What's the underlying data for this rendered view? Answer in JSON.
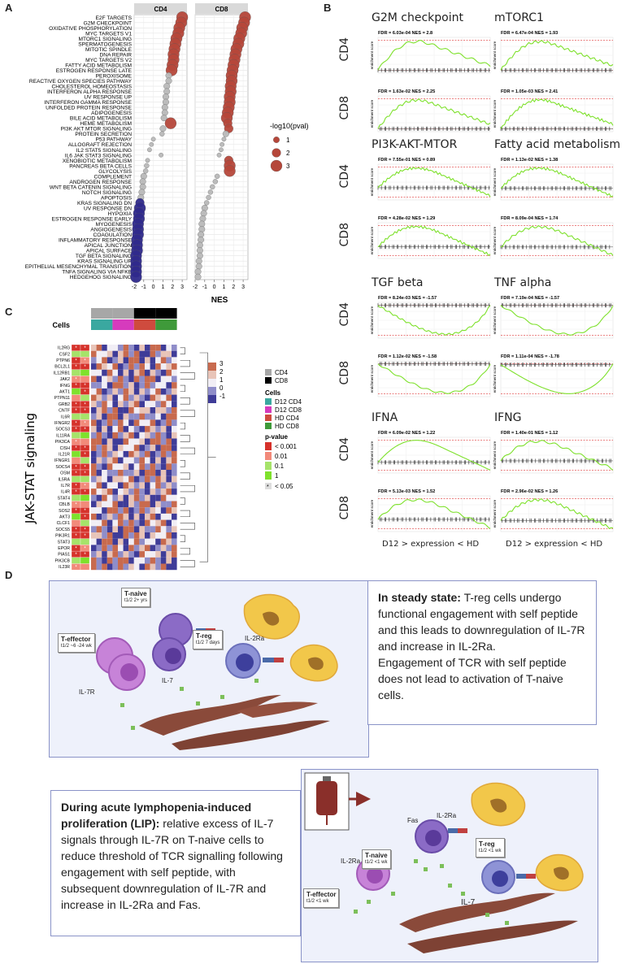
{
  "panel_letters": {
    "a": "A",
    "b": "B",
    "c": "C",
    "d": "D"
  },
  "panelA": {
    "facets": [
      "CD4",
      "CD8"
    ],
    "x_title": "NES",
    "x_ticks": [
      "-2",
      "-1",
      "0",
      "1",
      "2",
      "3"
    ],
    "legend_title": "-log10(pval)",
    "legend_items": [
      "1",
      "2",
      "3"
    ],
    "colors": {
      "positive": "#b5473a",
      "neutral": "#b8b8b8",
      "negative": "#2f2a8c"
    }
  },
  "chart_data": {
    "type": "scatter",
    "title": "",
    "xlabel": "NES",
    "xlim": [
      -2,
      3.5
    ],
    "facets": [
      "CD4",
      "CD8"
    ],
    "pathways": [
      "E2F TARGETS",
      "G2M CHECKPOINT",
      "OXIDATIVE PHOSPHORYLATION",
      "MYC TARGETS V1",
      "MTORC1 SIGNALING",
      "SPERMATOGENESIS",
      "MITOTIC SPINDLE",
      "DNA REPAIR",
      "MYC TARGETS V2",
      "FATTY ACID METABOLISM",
      "ESTROGEN RESPONSE LATE",
      "PEROXISOME",
      "REACTIVE OXYGEN SPECIES PATHWAY",
      "CHOLESTEROL HOMEOSTASIS",
      "INTERFERON ALPHA RESPONSE",
      "UV RESPONSE UP",
      "INTERFERON GAMMA RESPONSE",
      "UNFOLDED PROTEIN RESPONSE",
      "ADIPOGENESIS",
      "BILE ACID METABOLISM",
      "HEME METABOLISM",
      "PI3K AKT MTOR SIGNALING",
      "PROTEIN SECRETION",
      "P53 PATHWAY",
      "ALLOGRAFT REJECTION",
      "IL2 STAT5 SIGNALING",
      "IL6 JAK STAT3 SIGNALING",
      "XENOBIOTIC METABOLISM",
      "PANCREAS BETA CELLS",
      "GLYCOLYSIS",
      "COMPLEMENT",
      "ANDROGEN RESPONSE",
      "WNT BETA CATENIN SIGNALING",
      "NOTCH SIGNALING",
      "APOPTOSIS",
      "KRAS SIGNALING DN",
      "UV RESPONSE DN",
      "HYPOXIA",
      "ESTROGEN RESPONSE EARLY",
      "MYOGENESIS",
      "ANGIOGENESIS",
      "COAGULATION",
      "INFLAMMATORY RESPONSE",
      "APICAL JUNCTION",
      "APICAL SURFACE",
      "TGF BETA SIGNALING",
      "KRAS SIGNALING UP",
      "EPITHELIAL MESENCHYMAL TRANSITION",
      "TNFA SIGNALING VIA NFKB",
      "HEDGEHOG SIGNALING"
    ],
    "series": [
      {
        "name": "CD4",
        "nes": [
          3.0,
          2.9,
          2.7,
          2.6,
          2.4,
          2.3,
          2.2,
          2.1,
          2.1,
          2.0,
          1.9,
          1.6,
          1.6,
          1.4,
          1.4,
          1.3,
          1.3,
          1.2,
          1.2,
          1.1,
          1.8,
          1.0,
          0.9,
          0.0,
          -0.2,
          -0.4,
          0.8,
          -0.6,
          -0.7,
          -0.8,
          -1.0,
          -1.1,
          -1.1,
          -1.2,
          -1.3,
          -1.4,
          -1.4,
          -1.5,
          -1.5,
          -1.6,
          -1.6,
          -1.6,
          -1.7,
          -1.7,
          -1.7,
          -1.8,
          -1.8,
          -1.8,
          -1.8,
          -1.8
        ],
        "neglog10p": [
          3,
          3,
          3,
          3,
          3,
          3,
          3,
          3,
          3,
          3,
          3,
          1,
          1,
          1,
          1,
          1,
          1,
          1,
          1,
          1,
          3,
          1,
          0.5,
          0.3,
          0.3,
          0.3,
          0.3,
          0.3,
          0.5,
          0.5,
          1,
          1,
          1,
          1,
          1,
          2,
          3,
          3,
          3,
          3,
          3,
          3,
          3,
          3,
          3,
          3,
          3,
          3,
          3,
          3
        ]
      },
      {
        "name": "CD8",
        "nes": [
          3.2,
          3.1,
          2.9,
          2.8,
          2.6,
          2.5,
          2.3,
          2.2,
          2.1,
          2.0,
          1.9,
          1.8,
          1.8,
          1.7,
          1.7,
          1.6,
          1.6,
          1.5,
          1.4,
          1.3,
          1.4,
          1.5,
          1.2,
          1.0,
          0.8,
          0.7,
          0.5,
          1.5,
          1.6,
          1.6,
          0.3,
          0.1,
          -0.2,
          -0.4,
          -0.6,
          -0.8,
          -1.0,
          -1.1,
          -1.2,
          -1.3,
          -1.3,
          -1.4,
          -1.4,
          -1.5,
          -1.5,
          -1.5,
          -1.6,
          -1.6,
          -1.7,
          -1.7
        ],
        "neglog10p": [
          3,
          3,
          3,
          3,
          3,
          3,
          3,
          3,
          3,
          3,
          3,
          3,
          3,
          3,
          3,
          3,
          3,
          3,
          3,
          3,
          2,
          2,
          1,
          0.3,
          0.3,
          0.3,
          0.3,
          2,
          3,
          3,
          0.5,
          0.5,
          0.5,
          0.5,
          0.5,
          0.5,
          1,
          1,
          1,
          1,
          1,
          1,
          1,
          1,
          1,
          1,
          1,
          1,
          1,
          1
        ]
      }
    ]
  },
  "panelB": {
    "plots": [
      {
        "title": "G2M checkpoint",
        "cd4_stat": "FDR = 6.03e-04 NES = 2.8",
        "cd8_stat": "FDR = 1.63e-02 NES = 2.25",
        "shape": "up"
      },
      {
        "title": "mTORC1",
        "cd4_stat": "FDR = 6.47e-04 NES = 1.93",
        "cd8_stat": "FDR = 1.05e-03 NES = 2.41",
        "shape": "up"
      },
      {
        "title": "PI3K-AKT-MTOR",
        "cd4_stat": "FDR = 7.55e-01 NES = 0.89",
        "cd8_stat": "FDR = 4.28e-02 NES = 1.29",
        "shape": "mid"
      },
      {
        "title": "Fatty acid metabolism",
        "cd4_stat": "FDR = 1.13e-02 NES = 1.38",
        "cd8_stat": "FDR = 8.09e-04 NES = 1.74",
        "shape": "mid"
      },
      {
        "title": "TGF beta",
        "cd4_stat": "FDR = 8.24e-03 NES = -1.57",
        "cd8_stat": "FDR = 1.12e-02 NES = -1.58",
        "shape": "down"
      },
      {
        "title": "TNF alpha",
        "cd4_stat": "FDR = 7.19e-04 NES = -1.57",
        "cd8_stat": "FDR = 1.11e-04 NES = -1.78",
        "shape": "down"
      },
      {
        "title": "IFNA",
        "cd4_stat": "FDR = 6.09e-02 NES = 1.22",
        "cd8_stat": "FDR = 5.13e-03 NES = 1.52",
        "shape": "mid"
      },
      {
        "title": "IFNG",
        "cd4_stat": "FDR = 1.40e-01 NES = 1.12",
        "cd8_stat": "FDR = 2.96e-02 NES = 1.26",
        "shape": "mid"
      }
    ],
    "row_labels": [
      "CD4",
      "CD8"
    ],
    "y_axis_label": "enrichment score",
    "x_caption": "D12 > expression < HD"
  },
  "panelC": {
    "side_title": "JAK-STAT signaling",
    "cells_label": "Cells",
    "genes": [
      "IL2RG",
      "CSF2",
      "PTPN6",
      "BCL2L1",
      "IL12RB1",
      "JAK2",
      "IFNG",
      "AKT1",
      "PTPN11",
      "GRB2",
      "CNTF",
      "IL6R",
      "IFNGR2",
      "SOCS3",
      "IL11RA",
      "PIK3CA",
      "CISH",
      "IL21R",
      "IFNGR1",
      "SOCS4",
      "OSM",
      "IL5RA",
      "IL7R",
      "IL4R",
      "STAT4",
      "CBLB",
      "SOS2",
      "AKT3",
      "CLCF1",
      "SOCS5",
      "PIK3R1",
      "STAT3",
      "EPOR",
      "PIAS1",
      "PIK3CB",
      "IL23R"
    ],
    "scale_ticks": [
      "3",
      "2",
      "1",
      "0",
      "-1"
    ],
    "legend_group": [
      "CD4",
      "CD8"
    ],
    "legend_cells_title": "Cells",
    "legend_cells": [
      "D12 CD4",
      "D12 CD8",
      "HD CD4",
      "HD CD8"
    ],
    "legend_cell_colors": [
      "#3aa8a0",
      "#d63bbd",
      "#cf4b3e",
      "#3f9a3a"
    ],
    "pvalue_title": "p-value",
    "pvalue_items": [
      "< 0.001",
      "0.01",
      "0.1",
      "1"
    ],
    "sig_label": "< 0.05"
  },
  "panelD": {
    "steady": {
      "bold": "In steady state:",
      "text": " T-reg cells undergo functional engagement with self peptide and this leads to downregulation of IL-7R and increase in IL-2Ra.",
      "text2": "Engagement of TCR with self peptide does not lead to activation of T-naive cells."
    },
    "lip": {
      "bold": "During acute lymphopenia-induced proliferation (LIP):",
      "text": " relative excess of IL-7 signals through IL-7R on T-naive cells to reduce threshold of TCR signalling following engagement with self peptide, with subsequent downregulation of IL-7R and increase in IL-2Ra and Fas."
    },
    "top_tags": {
      "tnaive": "T-naive",
      "tnaive_sub": "t1/2 2+ yrs",
      "teff": "T-effector",
      "teff_sub": "t1/2 ~6 -24 wk",
      "treg": "T-reg",
      "treg_sub": "t1/2 7 days",
      "il2ra": "IL-2Ra",
      "il7": "IL-7",
      "il7r": "IL-7R"
    },
    "bottom_tags": {
      "tnaive": "T-naive",
      "tnaive_sub": "t1/2 <1 wk",
      "teff": "T-effector",
      "teff_sub": "t1/2 <1 wk",
      "treg": "T-reg",
      "treg_sub": "t1/2 <1 wk",
      "il2ra": "IL-2Ra",
      "il2ra2": "IL-2Ra",
      "fas": "Fas",
      "il7": "IL-7"
    }
  }
}
